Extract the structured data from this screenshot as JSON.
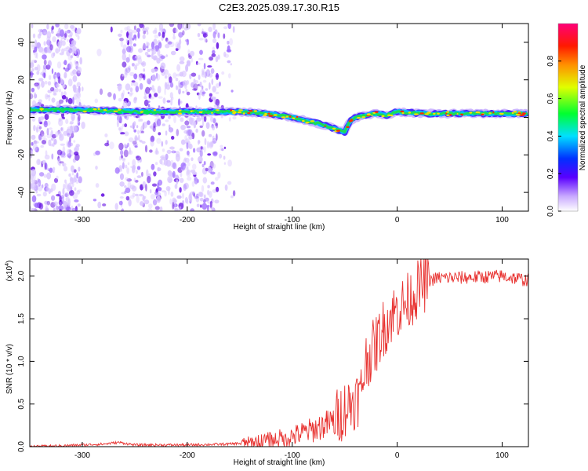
{
  "title": "C2E3.2025.039.17.30.R15",
  "chart_data": [
    {
      "type": "heatmap",
      "xlabel": "Height of straight line (km)",
      "ylabel": "Frequency (Hz)",
      "xlim": [
        -350,
        125
      ],
      "ylim": [
        -50,
        50
      ],
      "xticks": [
        -300,
        -200,
        -100,
        0,
        100
      ],
      "yticks": [
        -40,
        -20,
        0,
        20,
        40
      ],
      "colorbar": {
        "label": "Normalized spectral amplitude",
        "range": [
          0,
          1
        ],
        "ticks": [
          "0.0",
          "0.2",
          "0.4",
          "0.6",
          "0.8"
        ]
      },
      "ridge": {
        "x": [
          -350,
          -300,
          -250,
          -200,
          -175,
          -150,
          -125,
          -100,
          -85,
          -70,
          -60,
          -50,
          -45,
          -40,
          -30,
          -20,
          -10,
          0,
          25,
          50,
          75,
          100,
          125
        ],
        "freq_hz": [
          4,
          4,
          3,
          3,
          3,
          3,
          2,
          0,
          -2,
          -4,
          -6,
          -8,
          -2,
          0,
          1,
          2,
          1,
          3,
          2,
          2,
          2,
          2,
          2
        ]
      }
    },
    {
      "type": "line",
      "xlabel": "Height of straight line (km)",
      "ylabel": "SNR (10 * v/v)",
      "scale_label": "(x10",
      "scale_exp": "4",
      "scale_close": ")",
      "xlim": [
        -350,
        125
      ],
      "ylim": [
        0,
        2.2
      ],
      "xticks": [
        -300,
        -200,
        -100,
        0,
        100
      ],
      "yticks": [
        "0.0",
        "0.5",
        "1.0",
        "1.5",
        "2.0"
      ],
      "series": [
        {
          "color": "#e8312f",
          "x": [
            -350,
            -320,
            -300,
            -280,
            -265,
            -250,
            -200,
            -160,
            -140,
            -120,
            -100,
            -80,
            -60,
            -50,
            -40,
            -35,
            -30,
            -25,
            -20,
            -15,
            -10,
            -5,
            0,
            10,
            20,
            30,
            40,
            60,
            80,
            100,
            125
          ],
          "y": [
            0.0,
            0.01,
            0.02,
            0.03,
            0.05,
            0.02,
            0.02,
            0.03,
            0.05,
            0.08,
            0.12,
            0.2,
            0.3,
            0.45,
            0.55,
            0.6,
            1.0,
            1.1,
            1.2,
            1.35,
            1.45,
            1.55,
            1.6,
            1.7,
            1.85,
            1.95,
            1.98,
            1.98,
            1.99,
            2.0,
            1.95
          ]
        }
      ]
    }
  ]
}
